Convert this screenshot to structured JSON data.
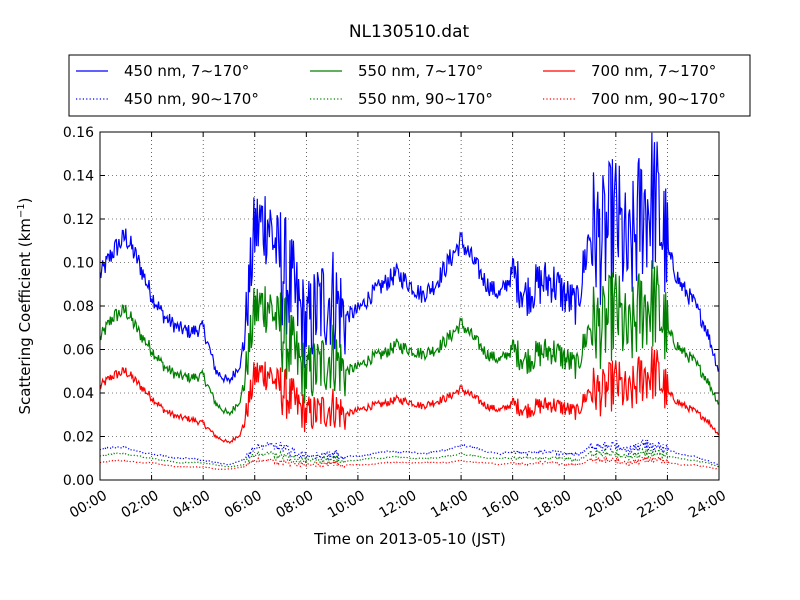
{
  "chart_data": {
    "type": "line",
    "title": "NL130510.dat",
    "xlabel": "Time on 2013-05-10 (JST)",
    "ylabel": "Scattering Coefficient (km",
    "ylabel_sup": "−1",
    "ylabel_end": ")",
    "xlim": [
      "00:00",
      "24:00"
    ],
    "ylim": [
      0,
      0.16
    ],
    "grid": true,
    "legend_position": "top",
    "x_ticks": [
      "00:00",
      "02:00",
      "04:00",
      "06:00",
      "08:00",
      "10:00",
      "12:00",
      "14:00",
      "16:00",
      "18:00",
      "20:00",
      "22:00",
      "24:00"
    ],
    "y_ticks": [
      "0.00",
      "0.02",
      "0.04",
      "0.06",
      "0.08",
      "0.10",
      "0.12",
      "0.14",
      "0.16"
    ],
    "x_hours": [
      0,
      0.5,
      1,
      1.5,
      2,
      2.5,
      3,
      3.5,
      4,
      4.5,
      5,
      5.5,
      6,
      6.5,
      7,
      7.5,
      8,
      8.5,
      9,
      9.5,
      10,
      10.5,
      11,
      11.5,
      12,
      12.5,
      13,
      13.5,
      14,
      14.5,
      15,
      15.5,
      16,
      16.5,
      17,
      17.5,
      18,
      18.5,
      19,
      19.5,
      20,
      20.5,
      21,
      21.5,
      22,
      22.5,
      23,
      23.5,
      24
    ],
    "series": [
      {
        "name": "450 nm, 7∼170°",
        "color": "#0000ff",
        "dash": "solid",
        "values": [
          0.094,
          0.105,
          0.112,
          0.1,
          0.085,
          0.075,
          0.07,
          0.068,
          0.07,
          0.05,
          0.045,
          0.055,
          0.115,
          0.12,
          0.1,
          0.085,
          0.07,
          0.08,
          0.085,
          0.075,
          0.078,
          0.085,
          0.09,
          0.095,
          0.09,
          0.085,
          0.09,
          0.1,
          0.11,
          0.1,
          0.09,
          0.085,
          0.095,
          0.085,
          0.09,
          0.092,
          0.085,
          0.08,
          0.115,
          0.11,
          0.12,
          0.1,
          0.125,
          0.13,
          0.105,
          0.09,
          0.082,
          0.07,
          0.05
        ]
      },
      {
        "name": "450 nm, 90∼170°",
        "color": "#0000ff",
        "dash": "dotted",
        "values": [
          0.014,
          0.015,
          0.015,
          0.013,
          0.012,
          0.011,
          0.01,
          0.01,
          0.009,
          0.008,
          0.007,
          0.009,
          0.015,
          0.016,
          0.015,
          0.013,
          0.011,
          0.011,
          0.012,
          0.011,
          0.011,
          0.012,
          0.013,
          0.013,
          0.013,
          0.012,
          0.013,
          0.014,
          0.016,
          0.015,
          0.013,
          0.012,
          0.013,
          0.012,
          0.013,
          0.013,
          0.012,
          0.012,
          0.015,
          0.015,
          0.016,
          0.014,
          0.016,
          0.016,
          0.014,
          0.012,
          0.011,
          0.009,
          0.007
        ]
      },
      {
        "name": "550 nm, 7∼170°",
        "color": "#008000",
        "dash": "solid",
        "values": [
          0.065,
          0.075,
          0.078,
          0.068,
          0.06,
          0.052,
          0.048,
          0.047,
          0.048,
          0.035,
          0.03,
          0.038,
          0.078,
          0.082,
          0.07,
          0.058,
          0.048,
          0.052,
          0.058,
          0.05,
          0.052,
          0.056,
          0.058,
          0.062,
          0.06,
          0.058,
          0.06,
          0.065,
          0.072,
          0.065,
          0.058,
          0.055,
          0.06,
          0.055,
          0.058,
          0.06,
          0.056,
          0.052,
          0.072,
          0.07,
          0.078,
          0.065,
          0.08,
          0.082,
          0.068,
          0.06,
          0.055,
          0.047,
          0.035
        ]
      },
      {
        "name": "550 nm, 90∼170°",
        "color": "#008000",
        "dash": "dotted",
        "values": [
          0.011,
          0.012,
          0.012,
          0.011,
          0.01,
          0.009,
          0.008,
          0.008,
          0.008,
          0.007,
          0.006,
          0.007,
          0.012,
          0.012,
          0.011,
          0.01,
          0.009,
          0.009,
          0.01,
          0.009,
          0.009,
          0.01,
          0.01,
          0.011,
          0.01,
          0.01,
          0.01,
          0.011,
          0.012,
          0.011,
          0.01,
          0.01,
          0.01,
          0.01,
          0.01,
          0.01,
          0.01,
          0.009,
          0.012,
          0.012,
          0.012,
          0.011,
          0.012,
          0.013,
          0.011,
          0.01,
          0.009,
          0.008,
          0.006
        ]
      },
      {
        "name": "700 nm, 7∼170°",
        "color": "#ff0000",
        "dash": "solid",
        "values": [
          0.043,
          0.048,
          0.05,
          0.044,
          0.038,
          0.032,
          0.029,
          0.028,
          0.026,
          0.02,
          0.017,
          0.022,
          0.048,
          0.05,
          0.042,
          0.036,
          0.03,
          0.031,
          0.034,
          0.03,
          0.032,
          0.034,
          0.035,
          0.037,
          0.036,
          0.034,
          0.036,
          0.038,
          0.042,
          0.038,
          0.034,
          0.032,
          0.035,
          0.032,
          0.034,
          0.035,
          0.033,
          0.031,
          0.042,
          0.04,
          0.045,
          0.038,
          0.048,
          0.05,
          0.04,
          0.035,
          0.032,
          0.028,
          0.021
        ]
      },
      {
        "name": "700 nm, 90∼170°",
        "color": "#ff0000",
        "dash": "dotted",
        "values": [
          0.008,
          0.009,
          0.009,
          0.008,
          0.008,
          0.007,
          0.006,
          0.006,
          0.006,
          0.005,
          0.005,
          0.006,
          0.009,
          0.009,
          0.008,
          0.008,
          0.007,
          0.007,
          0.008,
          0.007,
          0.007,
          0.007,
          0.008,
          0.008,
          0.008,
          0.008,
          0.008,
          0.008,
          0.009,
          0.008,
          0.008,
          0.007,
          0.008,
          0.007,
          0.008,
          0.008,
          0.007,
          0.007,
          0.009,
          0.009,
          0.009,
          0.008,
          0.009,
          0.01,
          0.008,
          0.007,
          0.007,
          0.006,
          0.005
        ]
      }
    ]
  }
}
